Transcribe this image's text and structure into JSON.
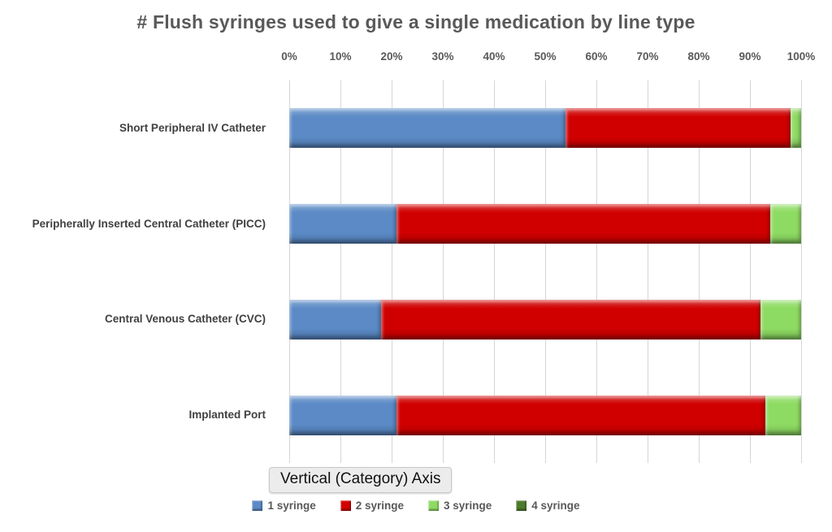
{
  "title": "# Flush syringes used to give a single medication by line type",
  "tooltip": {
    "label": "Vertical (Category) Axis"
  },
  "colors": {
    "series_blue": "#5B8AC6",
    "series_red": "#D00000",
    "series_light_green": "#8EDB63",
    "series_dark_green": "#4E7A2B",
    "gridline": "#D6D6D6",
    "title_text": "#595959",
    "category_text": "#404040"
  },
  "chart_data": {
    "type": "bar",
    "orientation": "horizontal",
    "stacked": true,
    "units": "percent",
    "title": "# Flush syringes used to give a single medication by line type",
    "categories": [
      "Short Peripheral IV Catheter",
      "Peripherally Inserted Central Catheter (PICC)",
      "Central Venous Catheter (CVC)",
      "Implanted Port"
    ],
    "series": [
      {
        "name": "1 syringe",
        "color": "#5B8AC6",
        "values": [
          54,
          21,
          18,
          21
        ]
      },
      {
        "name": "2 syringe",
        "color": "#D00000",
        "values": [
          44,
          73,
          74,
          72
        ]
      },
      {
        "name": "3 syringe",
        "color": "#8EDB63",
        "values": [
          2,
          6,
          8,
          7
        ]
      },
      {
        "name": "4 syringe",
        "color": "#4E7A2B",
        "values": [
          0,
          0,
          0,
          0
        ]
      }
    ],
    "x_ticks": [
      "0%",
      "10%",
      "20%",
      "30%",
      "40%",
      "50%",
      "60%",
      "70%",
      "80%",
      "90%",
      "100%"
    ],
    "xlabel": "",
    "ylabel": "",
    "xlim": [
      0,
      100
    ],
    "grid": true,
    "legend_position": "bottom"
  }
}
